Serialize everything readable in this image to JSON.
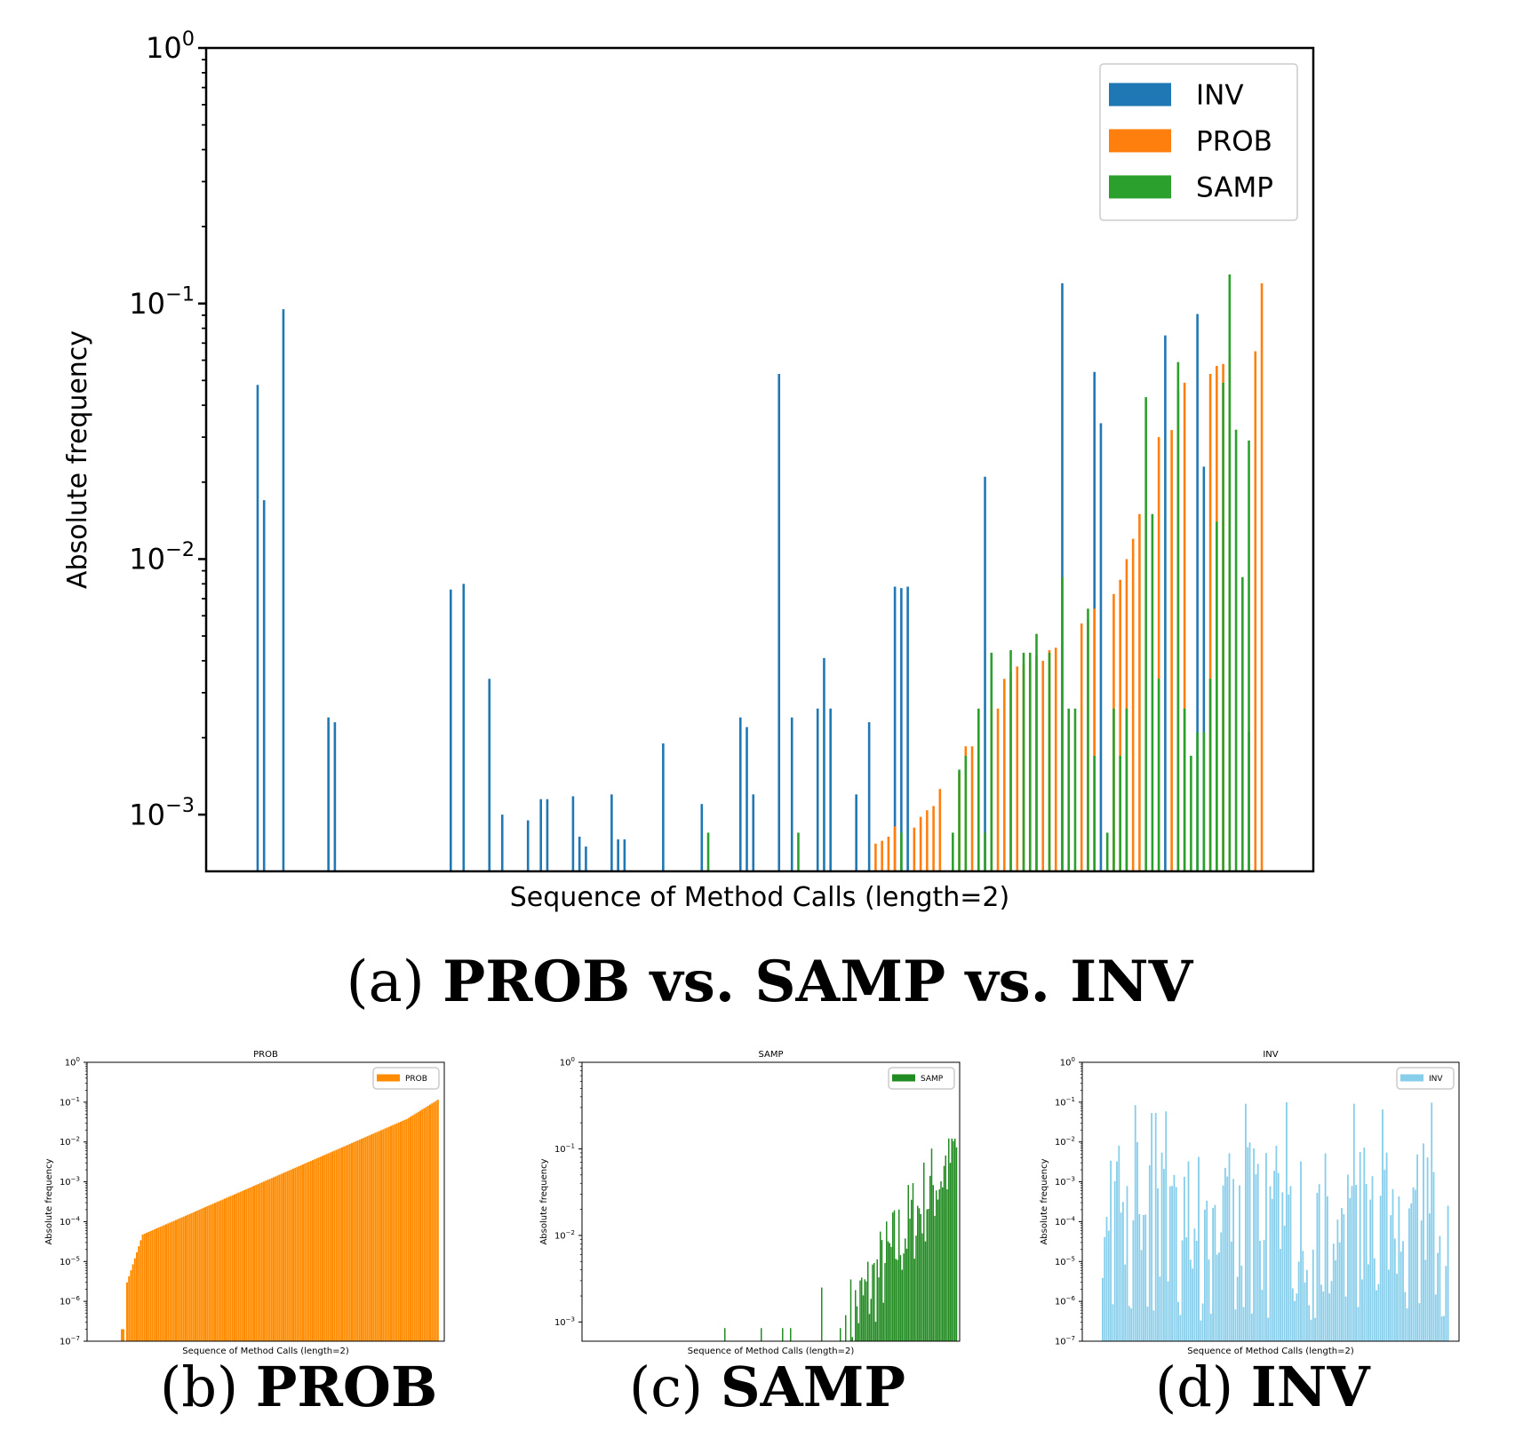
{
  "chart_data": [
    {
      "type": "bar",
      "title": "",
      "xlabel": "Sequence of Method Calls (length=2)",
      "ylabel": "Absolute frequency",
      "yscale": "log",
      "ylim": [
        0.0006,
        1
      ],
      "yticks": [
        "10^0",
        "10^-1",
        "10^-2",
        "10^-3"
      ],
      "legend_position": "top-right",
      "series": [
        {
          "name": "INV",
          "color": "#1f77b4",
          "points": [
            [
              8,
              0.048
            ],
            [
              9,
              0.017
            ],
            [
              12,
              0.095
            ],
            [
              19,
              0.0024
            ],
            [
              20,
              0.0023
            ],
            [
              38,
              0.0076
            ],
            [
              40,
              0.008
            ],
            [
              44,
              0.0034
            ],
            [
              46,
              0.001
            ],
            [
              50,
              0.00095
            ],
            [
              52,
              0.00115
            ],
            [
              53,
              0.00115
            ],
            [
              57,
              0.00118
            ],
            [
              58,
              0.00082
            ],
            [
              59,
              0.00075
            ],
            [
              63,
              0.0012
            ],
            [
              64,
              0.0008
            ],
            [
              65,
              0.0008
            ],
            [
              71,
              0.0019
            ],
            [
              77,
              0.0011
            ],
            [
              83,
              0.0024
            ],
            [
              84,
              0.0022
            ],
            [
              85,
              0.0012
            ],
            [
              89,
              0.053
            ],
            [
              91,
              0.0024
            ],
            [
              95,
              0.0026
            ],
            [
              96,
              0.0041
            ],
            [
              97,
              0.0026
            ],
            [
              101,
              0.0012
            ],
            [
              103,
              0.0023
            ],
            [
              107,
              0.0078
            ],
            [
              108,
              0.0077
            ],
            [
              109,
              0.0078
            ],
            [
              121,
              0.021
            ],
            [
              133,
              0.12
            ],
            [
              138,
              0.054
            ],
            [
              139,
              0.034
            ],
            [
              149,
              0.075
            ],
            [
              154,
              0.091
            ],
            [
              155,
              0.023
            ],
            [
              162,
              0.0021
            ]
          ]
        },
        {
          "name": "PROB",
          "color": "#ff7f0e",
          "points": [
            [
              104,
              0.00077
            ],
            [
              105,
              0.00079
            ],
            [
              106,
              0.00082
            ],
            [
              107,
              0.0009
            ],
            [
              110,
              0.00089
            ],
            [
              111,
              0.00098
            ],
            [
              112,
              0.00104
            ],
            [
              113,
              0.00108
            ],
            [
              114,
              0.00126
            ],
            [
              117,
              0.00146
            ],
            [
              118,
              0.00185
            ],
            [
              119,
              0.00185
            ],
            [
              122,
              0.0026
            ],
            [
              123,
              0.0026
            ],
            [
              124,
              0.0034
            ],
            [
              125,
              0.0036
            ],
            [
              126,
              0.0038
            ],
            [
              127,
              0.0039
            ],
            [
              128,
              0.004
            ],
            [
              129,
              0.0042
            ],
            [
              130,
              0.004
            ],
            [
              131,
              0.0044
            ],
            [
              132,
              0.0045
            ],
            [
              136,
              0.0056
            ],
            [
              137,
              0.0058
            ],
            [
              138,
              0.0064
            ],
            [
              141,
              0.0073
            ],
            [
              142,
              0.0083
            ],
            [
              143,
              0.01
            ],
            [
              144,
              0.012
            ],
            [
              145,
              0.015
            ],
            [
              148,
              0.03
            ],
            [
              150,
              0.032
            ],
            [
              151,
              0.046
            ],
            [
              152,
              0.049
            ],
            [
              156,
              0.053
            ],
            [
              157,
              0.057
            ],
            [
              158,
              0.058
            ],
            [
              159,
              0.062
            ],
            [
              163,
              0.065
            ],
            [
              164,
              0.12
            ]
          ]
        },
        {
          "name": "SAMP",
          "color": "#2ca02c",
          "points": [
            [
              78,
              0.00085
            ],
            [
              92,
              0.00085
            ],
            [
              108,
              0.00085
            ],
            [
              116,
              0.00085
            ],
            [
              117,
              0.0015
            ],
            [
              118,
              0.0017
            ],
            [
              120,
              0.0026
            ],
            [
              121,
              0.00085
            ],
            [
              122,
              0.0043
            ],
            [
              125,
              0.0044
            ],
            [
              127,
              0.0043
            ],
            [
              128,
              0.0043
            ],
            [
              129,
              0.0051
            ],
            [
              131,
              0.0043
            ],
            [
              133,
              0.0085
            ],
            [
              134,
              0.0026
            ],
            [
              135,
              0.0026
            ],
            [
              137,
              0.0064
            ],
            [
              138,
              0.0017
            ],
            [
              140,
              0.00085
            ],
            [
              141,
              0.0026
            ],
            [
              142,
              0.0017
            ],
            [
              143,
              0.0026
            ],
            [
              146,
              0.043
            ],
            [
              147,
              0.015
            ],
            [
              148,
              0.0034
            ],
            [
              151,
              0.059
            ],
            [
              152,
              0.0026
            ],
            [
              153,
              0.0017
            ],
            [
              154,
              0.0021
            ],
            [
              155,
              0.0021
            ],
            [
              156,
              0.0034
            ],
            [
              157,
              0.014
            ],
            [
              158,
              0.049
            ],
            [
              159,
              0.13
            ],
            [
              160,
              0.0321
            ],
            [
              161,
              0.0085
            ],
            [
              162,
              0.0291
            ]
          ]
        }
      ]
    },
    {
      "type": "bar",
      "title": "PROB",
      "xlabel": "Sequence of Method Calls (length=2)",
      "ylabel": "Absolute frequency",
      "yscale": "log",
      "ylim": [
        1e-07,
        1
      ],
      "yticks": [
        "10^0",
        "10^-1",
        "10^-2",
        "10^-3",
        "10^-4",
        "10^-5",
        "10^-6",
        "10^-7"
      ],
      "legend_position": "top-right",
      "series": [
        {
          "name": "PROB",
          "color": "#ff8c00",
          "first_value": 2e-07,
          "last_value": 0.115,
          "trend": "sorted-ascending"
        }
      ]
    },
    {
      "type": "bar",
      "title": "SAMP",
      "xlabel": "Sequence of Method Calls (length=2)",
      "ylabel": "Absolute frequency",
      "yscale": "log",
      "ylim": [
        0.0006,
        1
      ],
      "yticks": [
        "10^0",
        "10^-1",
        "10^-2",
        "10^-3"
      ],
      "legend_position": "top-right",
      "series": [
        {
          "name": "SAMP",
          "color": "#228b22"
        }
      ]
    },
    {
      "type": "bar",
      "title": "INV",
      "xlabel": "Sequence of Method Calls (length=2)",
      "ylabel": "Absolute frequency",
      "yscale": "log",
      "ylim": [
        1e-07,
        1
      ],
      "yticks": [
        "10^0",
        "10^-1",
        "10^-2",
        "10^-3",
        "10^-4",
        "10^-5",
        "10^-6",
        "10^-7"
      ],
      "legend_position": "top-right",
      "series": [
        {
          "name": "INV",
          "color": "#87ceeb"
        }
      ]
    }
  ],
  "captions": {
    "a": {
      "letter": "(a) ",
      "bold": "PROB vs. SAMP vs. INV"
    },
    "b": {
      "letter": "(b) ",
      "bold": "PROB"
    },
    "c": {
      "letter": "(c) ",
      "bold": "SAMP"
    },
    "d": {
      "letter": "(d) ",
      "bold": "INV"
    }
  }
}
